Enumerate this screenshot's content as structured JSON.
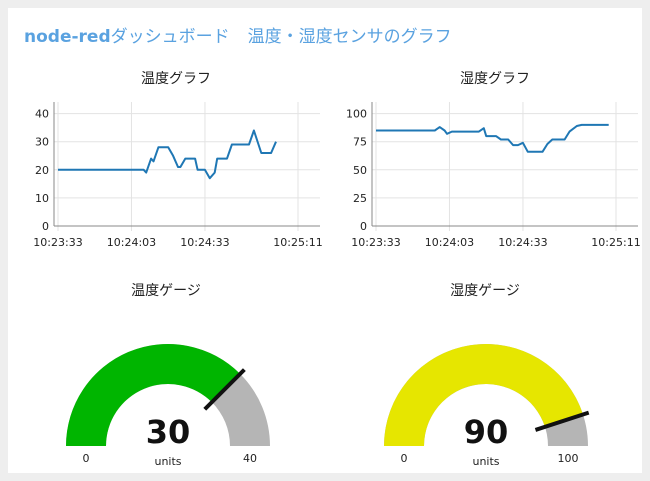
{
  "header": {
    "brand": "node-red",
    "title": "ダッシュボード",
    "subtitle": "温度・湿度センサのグラフ"
  },
  "chart_data": [
    {
      "type": "line",
      "title": "温度グラフ",
      "yticks": [
        0,
        10,
        20,
        30,
        40
      ],
      "ylim": [
        0,
        42
      ],
      "xticks": [
        "10:23:33",
        "10:24:03",
        "10:24:33",
        "10:25:11"
      ],
      "x_seconds": [
        0,
        30,
        60,
        98
      ],
      "color": "#1f77b4",
      "points": [
        [
          0,
          20
        ],
        [
          35,
          20
        ],
        [
          36,
          19
        ],
        [
          38,
          24
        ],
        [
          39,
          23
        ],
        [
          41,
          28
        ],
        [
          45,
          28
        ],
        [
          47,
          25
        ],
        [
          49,
          21
        ],
        [
          50,
          21
        ],
        [
          52,
          24
        ],
        [
          56,
          24
        ],
        [
          57,
          20
        ],
        [
          60,
          20
        ],
        [
          62,
          17
        ],
        [
          64,
          19
        ],
        [
          65,
          24
        ],
        [
          69,
          24
        ],
        [
          71,
          29
        ],
        [
          78,
          29
        ],
        [
          80,
          34
        ],
        [
          83,
          26
        ],
        [
          87,
          26
        ],
        [
          89,
          30
        ]
      ],
      "grid": true
    },
    {
      "type": "line",
      "title": "湿度グラフ",
      "yticks": [
        0,
        25,
        50,
        75,
        100
      ],
      "ylim": [
        0,
        105
      ],
      "xticks": [
        "10:23:33",
        "10:24:03",
        "10:24:33",
        "10:25:11"
      ],
      "x_seconds": [
        0,
        30,
        60,
        98
      ],
      "color": "#1f77b4",
      "points": [
        [
          0,
          85
        ],
        [
          24,
          85
        ],
        [
          26,
          88
        ],
        [
          28,
          85
        ],
        [
          29,
          82
        ],
        [
          31,
          84
        ],
        [
          42,
          84
        ],
        [
          44,
          87
        ],
        [
          45,
          80
        ],
        [
          49,
          80
        ],
        [
          51,
          77
        ],
        [
          54,
          77
        ],
        [
          56,
          72
        ],
        [
          58,
          72
        ],
        [
          60,
          74
        ],
        [
          62,
          66
        ],
        [
          68,
          66
        ],
        [
          70,
          73
        ],
        [
          72,
          77
        ],
        [
          77,
          77
        ],
        [
          79,
          84
        ],
        [
          82,
          89
        ],
        [
          84,
          90
        ],
        [
          95,
          90
        ]
      ],
      "grid": true
    }
  ],
  "gauges": [
    {
      "title": "温度ゲージ",
      "value": 30,
      "min": 0,
      "max": 40,
      "units": "units",
      "min_label": "0",
      "max_label": "40",
      "color": "#00b500"
    },
    {
      "title": "湿度ゲージ",
      "value": 90,
      "min": 0,
      "max": 100,
      "units": "units",
      "min_label": "0",
      "max_label": "100",
      "color": "#e6e600"
    }
  ],
  "colors": {
    "accent": "#5aa2e0",
    "gauge_bg": "#b5b5b5",
    "needle": "#111111"
  }
}
